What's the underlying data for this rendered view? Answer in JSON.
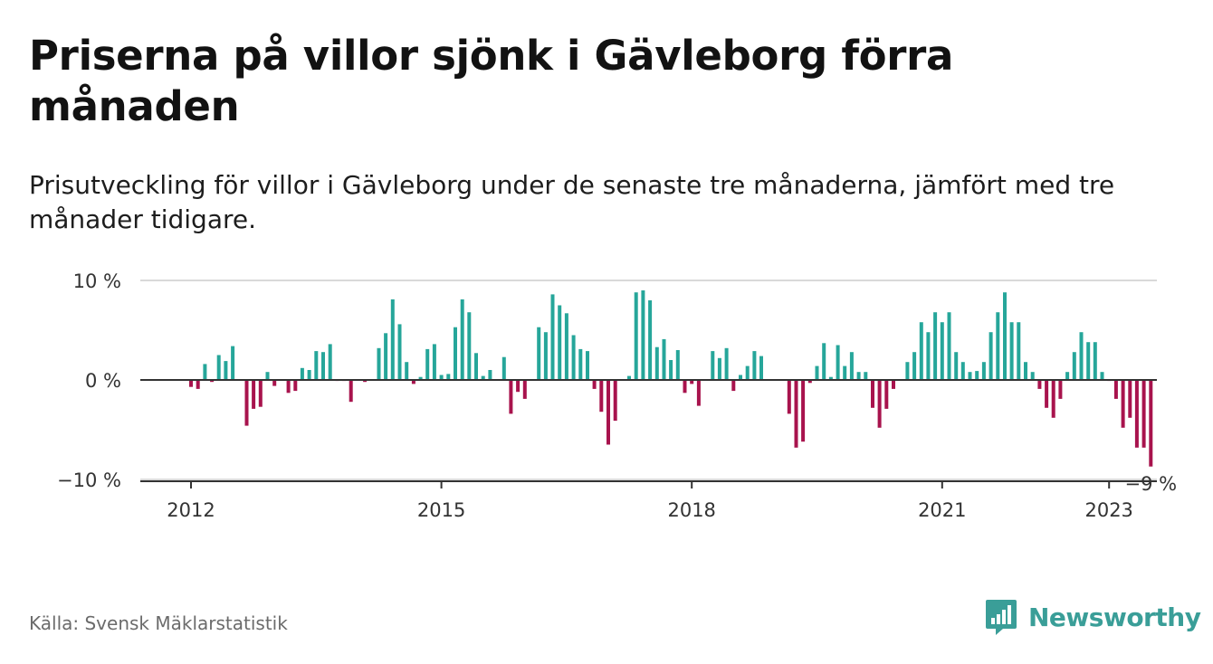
{
  "title": "Priserna på villor sjönk i Gävleborg förra månaden",
  "subtitle": "Prisutveckling för villor i Gävleborg under de senaste tre månaderna, jämfört med tre månader tidigare.",
  "source": "Källa: Svensk Mäklarstatistik",
  "brand": {
    "name": "Newsworthy",
    "logo_icon": "newsworthy-chart-bubble-icon"
  },
  "colors": {
    "positive": "#26a69a",
    "negative": "#a8134d",
    "zero_line": "#333333",
    "grid": "#d9d9d9"
  },
  "chart_data": {
    "type": "bar",
    "y_tick_labels": [
      "10 %",
      "0 %",
      "−10 %"
    ],
    "y_ticks": [
      10,
      0,
      -10
    ],
    "ylim": [
      -10,
      10
    ],
    "x_tick_labels": [
      "2012",
      "2015",
      "2018",
      "2021",
      "2023"
    ],
    "x_ticks": [
      2012,
      2015,
      2018,
      2021,
      2023
    ],
    "x_start": 2012.0,
    "x_step_months": 1,
    "last_value_label": "−9 %",
    "grid": true,
    "values": [
      -0.7,
      -0.9,
      1.6,
      -0.2,
      2.5,
      1.9,
      3.4,
      0.0,
      -4.6,
      -2.9,
      -2.7,
      0.8,
      -0.6,
      0.0,
      -1.3,
      -1.1,
      1.2,
      1.0,
      2.9,
      2.8,
      3.6,
      -0.1,
      -0.1,
      -2.2,
      0.0,
      -0.2,
      0.0,
      3.2,
      4.7,
      8.1,
      5.6,
      1.8,
      -0.4,
      0.3,
      3.1,
      3.6,
      0.5,
      0.6,
      5.3,
      8.1,
      6.8,
      2.7,
      0.4,
      1.0,
      0.0,
      2.3,
      -3.4,
      -1.2,
      -1.9,
      0.0,
      5.3,
      4.8,
      8.6,
      7.5,
      6.7,
      4.5,
      3.1,
      2.9,
      -0.9,
      -3.2,
      -6.5,
      -4.1,
      0.0,
      0.4,
      8.8,
      9.0,
      8.0,
      3.3,
      4.1,
      2.0,
      3.0,
      -1.3,
      -0.4,
      -2.6,
      0.0,
      2.9,
      2.2,
      3.2,
      -1.1,
      0.5,
      1.4,
      2.9,
      2.4,
      0.0,
      0.0,
      0.0,
      -3.4,
      -6.8,
      -6.2,
      -0.3,
      1.4,
      3.7,
      0.3,
      3.5,
      1.4,
      2.8,
      0.8,
      0.8,
      -2.8,
      -4.8,
      -2.9,
      -0.9,
      0.0,
      1.8,
      2.8,
      5.8,
      4.8,
      6.8,
      5.8,
      6.8,
      2.8,
      1.8,
      0.8,
      0.9,
      1.8,
      4.8,
      6.8,
      8.8,
      5.8,
      5.8,
      1.8,
      0.8,
      -0.9,
      -2.8,
      -3.8,
      -1.9,
      0.8,
      2.8,
      4.8,
      3.8,
      3.8,
      0.8,
      -0.1,
      -1.9,
      -4.8,
      -3.8,
      -6.8,
      -6.8,
      -8.7
    ]
  }
}
